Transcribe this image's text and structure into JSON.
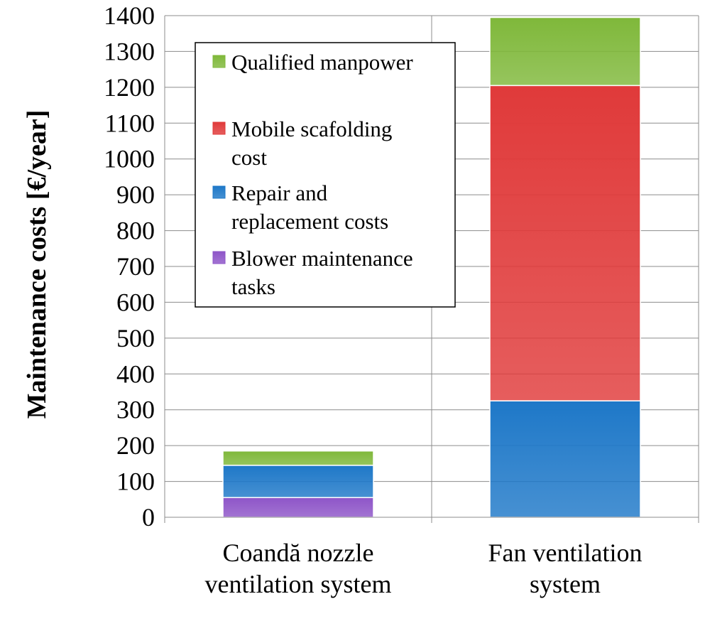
{
  "chart_data": {
    "type": "bar",
    "stacked": true,
    "title": "",
    "xlabel": "",
    "ylabel": "Maintenance costs [€/year]",
    "ylim": [
      0,
      1400
    ],
    "yticks": [
      0,
      100,
      200,
      300,
      400,
      500,
      600,
      700,
      800,
      900,
      1000,
      1100,
      1200,
      1300,
      1400
    ],
    "grid": true,
    "legend_position": "top-left",
    "categories": [
      [
        "Coandă nozzle",
        "ventilation system"
      ],
      [
        "Fan ventilation",
        "system"
      ]
    ],
    "series": [
      {
        "name": "Blower maintenance tasks",
        "legend_lines": [
          "Blower maintenance",
          "tasks"
        ],
        "color": "#8e55c8",
        "values": [
          55,
          0
        ]
      },
      {
        "name": "Repair and replacement costs",
        "legend_lines": [
          "Repair and",
          "replacement costs"
        ],
        "color": "#1e78c8",
        "values": [
          90,
          325
        ]
      },
      {
        "name": "Mobile scafolding cost",
        "legend_lines": [
          "Mobile scafolding",
          "cost"
        ],
        "color": "#e03a3a",
        "values": [
          0,
          880
        ]
      },
      {
        "name": "Qualified manpower",
        "legend_lines": [
          "Qualified manpower"
        ],
        "color": "#7fb83a",
        "values": [
          40,
          190
        ]
      }
    ]
  }
}
